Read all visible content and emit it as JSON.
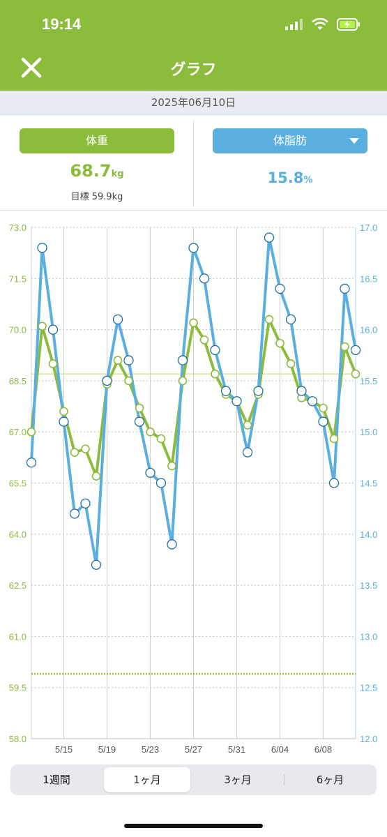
{
  "status_bar": {
    "time": "19:14"
  },
  "header": {
    "title": "グラフ",
    "close_icon": "close-icon"
  },
  "date": "2025年06月10日",
  "metrics": {
    "weight": {
      "label": "体重",
      "value": "68.7",
      "unit": "kg",
      "goal": "目標 59.9kg",
      "color": "#8cbc3c"
    },
    "fat": {
      "label": "体脂肪",
      "value": "15.8",
      "unit": "%",
      "color": "#5aafe0"
    }
  },
  "chart_data": {
    "type": "line",
    "x_ticks": [
      "5/15",
      "5/19",
      "5/23",
      "5/27",
      "5/31",
      "6/04",
      "6/08"
    ],
    "y_left": {
      "ylim": [
        58.0,
        73.0
      ],
      "ticks": [
        "73.0",
        "71.5",
        "70.0",
        "68.5",
        "67.0",
        "65.5",
        "64.0",
        "62.5",
        "61.0",
        "59.5",
        "58.0"
      ]
    },
    "y_right": {
      "ylim": [
        12.0,
        17.0
      ],
      "ticks": [
        "17.0",
        "16.5",
        "16.0",
        "15.5",
        "15.0",
        "14.5",
        "14.0",
        "13.5",
        "13.0",
        "12.5",
        "12.0"
      ]
    },
    "reference_lines": {
      "current_weight": 68.7,
      "goal_weight": 59.9
    },
    "series": [
      {
        "name": "体重",
        "axis": "left",
        "color": "#8cbc3c",
        "values": [
          67.0,
          70.1,
          69.0,
          67.6,
          66.4,
          66.5,
          65.7,
          68.4,
          69.1,
          68.5,
          67.7,
          67.0,
          66.8,
          66.0,
          68.5,
          70.2,
          69.7,
          68.7,
          68.1,
          67.9,
          67.2,
          68.1,
          70.3,
          69.6,
          69.0,
          68.0,
          67.9,
          67.7,
          66.8,
          69.5,
          68.7
        ]
      },
      {
        "name": "体脂肪",
        "axis": "right",
        "color": "#5aafe0",
        "values": [
          14.7,
          16.8,
          16.0,
          15.1,
          14.2,
          14.3,
          13.7,
          15.5,
          16.1,
          15.7,
          15.1,
          14.6,
          14.5,
          13.9,
          15.7,
          16.8,
          16.5,
          15.8,
          15.4,
          15.3,
          14.8,
          15.4,
          16.9,
          16.4,
          16.1,
          15.4,
          15.3,
          15.1,
          14.5,
          16.4,
          15.8
        ]
      }
    ]
  },
  "periods": [
    "1週間",
    "1ヶ月",
    "3ヶ月",
    "6ヶ月"
  ],
  "active_period": "1ヶ月"
}
